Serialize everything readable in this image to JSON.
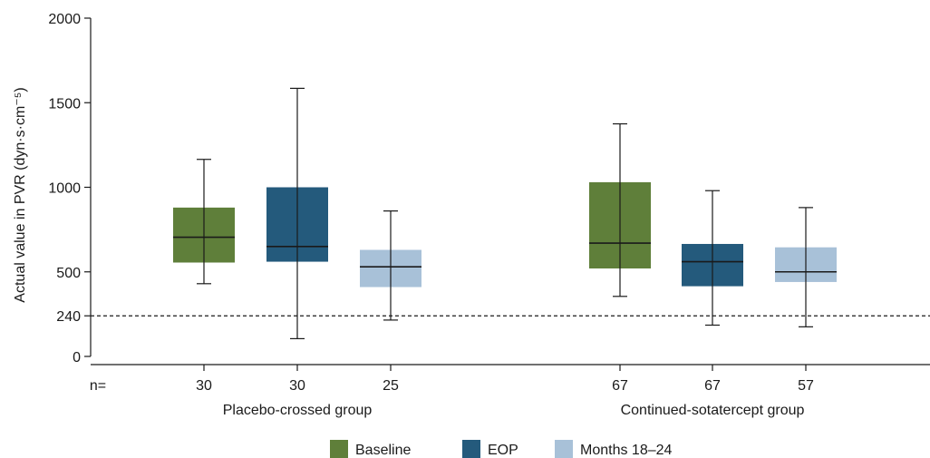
{
  "chart_data": {
    "type": "box",
    "ylabel": "Actual value in PVR (dyn·s·cm⁻⁵)",
    "y_ticks": [
      0,
      240,
      500,
      1000,
      1500,
      2000
    ],
    "ylim": [
      0,
      2000
    ],
    "reference_line": {
      "value": 240,
      "style": "dashed"
    },
    "n_label": "n=",
    "series": [
      {
        "name": "Baseline",
        "color": "#5f7f3a"
      },
      {
        "name": "EOP",
        "color": "#245a7c"
      },
      {
        "name": "Months 18–24",
        "color": "#a8c1d8"
      }
    ],
    "groups": [
      {
        "label": "Placebo-crossed group",
        "boxes": [
          {
            "series": "Baseline",
            "n": "30",
            "min": 430,
            "q1": 555,
            "median": 705,
            "q3": 880,
            "max": 1165
          },
          {
            "series": "EOP",
            "n": "30",
            "min": 105,
            "q1": 560,
            "median": 650,
            "q3": 1000,
            "max": 1585
          },
          {
            "series": "Months 18–24",
            "n": "25",
            "min": 215,
            "q1": 410,
            "median": 530,
            "q3": 630,
            "max": 860
          }
        ]
      },
      {
        "label": "Continued-sotatercept group",
        "boxes": [
          {
            "series": "Baseline",
            "n": "67",
            "min": 355,
            "q1": 520,
            "median": 670,
            "q3": 1030,
            "max": 1375
          },
          {
            "series": "EOP",
            "n": "67",
            "min": 185,
            "q1": 415,
            "median": 560,
            "q3": 665,
            "max": 980
          },
          {
            "series": "Months 18–24",
            "n": "57",
            "min": 175,
            "q1": 440,
            "median": 500,
            "q3": 645,
            "max": 880
          }
        ]
      }
    ],
    "legend_position": "bottom-center"
  }
}
